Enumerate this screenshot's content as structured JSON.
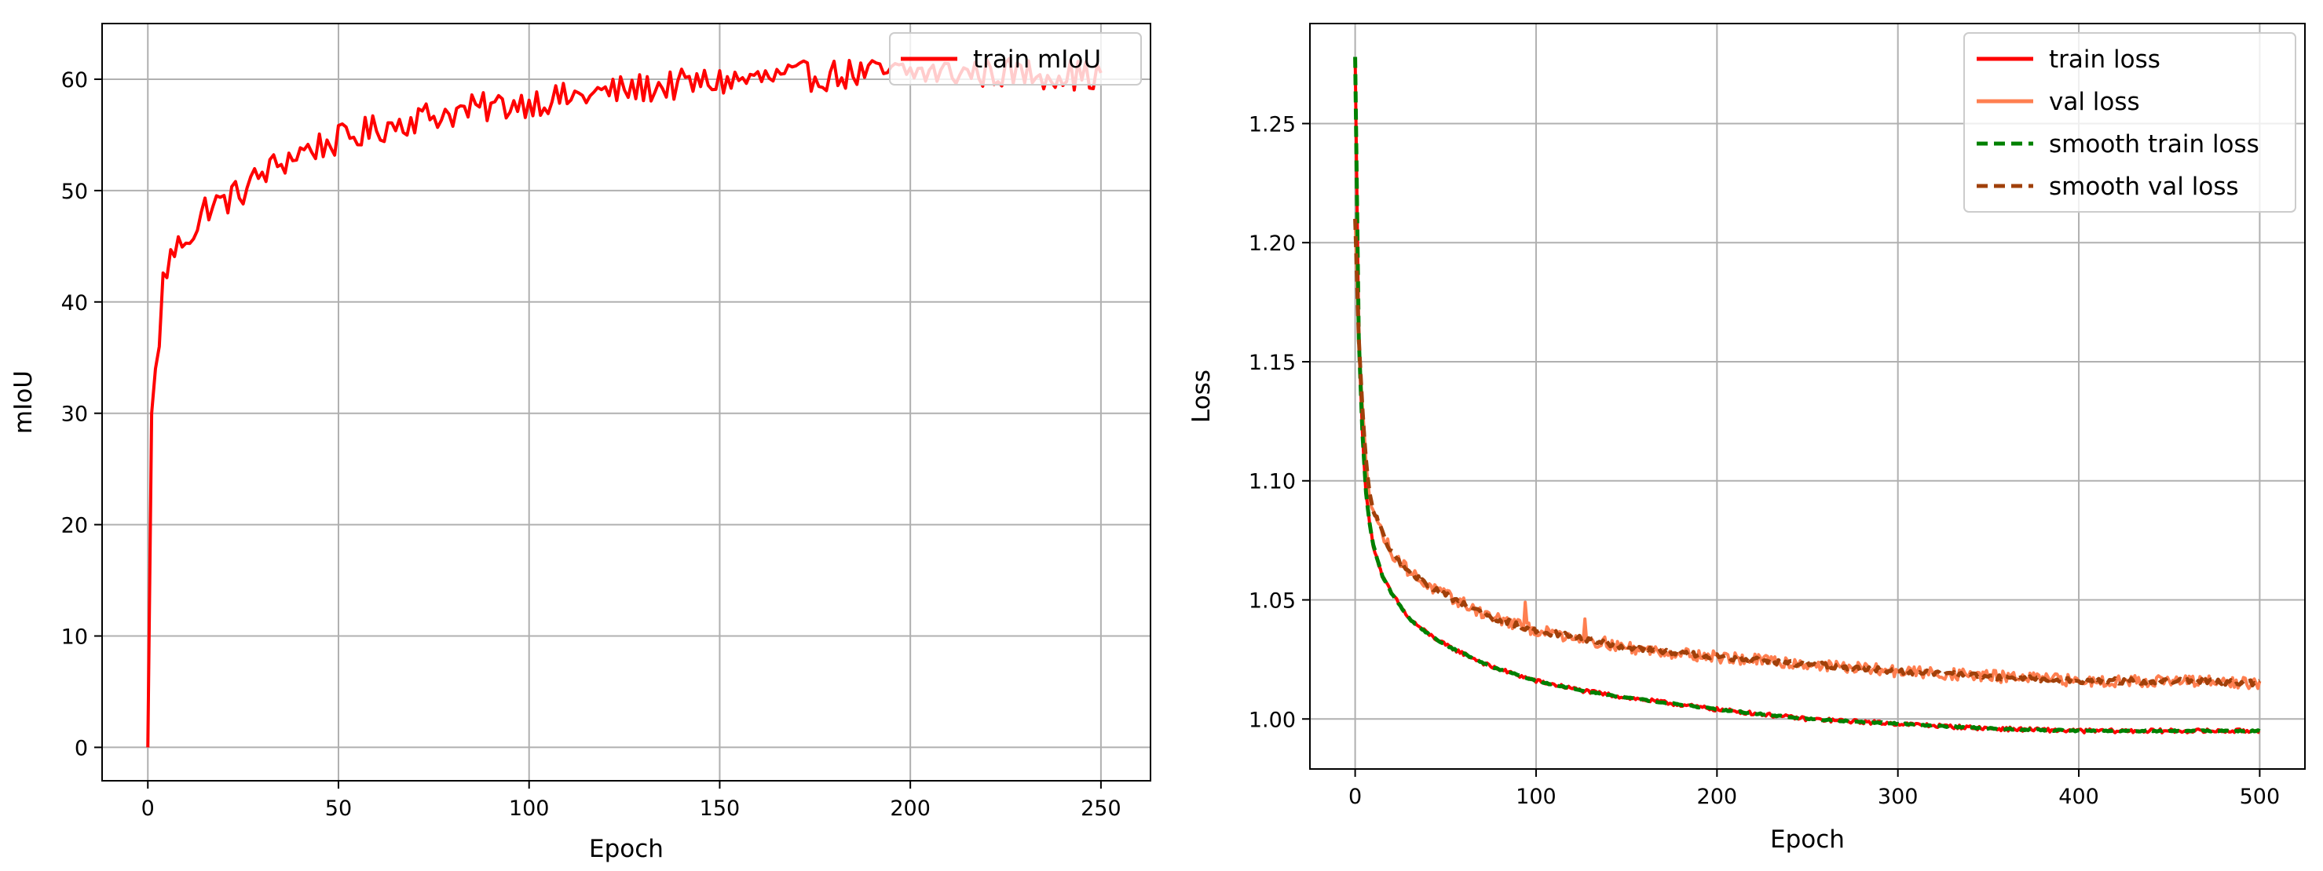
{
  "chart_data": [
    {
      "type": "line",
      "title": "",
      "xlabel": "Epoch",
      "ylabel": "mIoU",
      "xlim": [
        -12,
        263
      ],
      "ylim": [
        -3,
        65
      ],
      "xticks": [
        0,
        50,
        100,
        150,
        200,
        250
      ],
      "yticks": [
        0,
        10,
        20,
        30,
        40,
        50,
        60
      ],
      "grid": true,
      "legend_position": "upper-right",
      "series": [
        {
          "name": "train mIoU",
          "color": "#ff0000",
          "style": "solid",
          "x_start": 0,
          "x_step": 1,
          "anchors": [
            [
              0,
              0
            ],
            [
              1,
              30
            ],
            [
              2,
              34
            ],
            [
              3,
              36
            ],
            [
              4,
              42
            ],
            [
              6,
              44
            ],
            [
              8,
              45
            ],
            [
              10,
              46
            ],
            [
              13,
              46.5
            ],
            [
              15,
              48.5
            ],
            [
              20,
              49
            ],
            [
              25,
              50
            ],
            [
              30,
              51.5
            ],
            [
              35,
              52.5
            ],
            [
              40,
              53.5
            ],
            [
              50,
              54.5
            ],
            [
              60,
              55.5
            ],
            [
              70,
              56.5
            ],
            [
              80,
              57
            ],
            [
              90,
              57.5
            ],
            [
              100,
              58
            ],
            [
              110,
              58.3
            ],
            [
              120,
              58.8
            ],
            [
              130,
              59.2
            ],
            [
              140,
              59.5
            ],
            [
              150,
              59.8
            ],
            [
              160,
              60
            ],
            [
              170,
              60.2
            ],
            [
              180,
              60.4
            ],
            [
              200,
              60.6
            ],
            [
              220,
              60.6
            ],
            [
              240,
              60.5
            ],
            [
              250,
              60.2
            ]
          ],
          "noise_amplitude": 1.4,
          "values": []
        }
      ]
    },
    {
      "type": "line",
      "title": "",
      "xlabel": "Epoch",
      "ylabel": "Loss",
      "xlim": [
        -25,
        525
      ],
      "ylim": [
        0.979,
        1.292
      ],
      "xticks": [
        0,
        100,
        200,
        300,
        400,
        500
      ],
      "yticks": [
        1.0,
        1.05,
        1.1,
        1.15,
        1.2,
        1.25
      ],
      "grid": true,
      "legend_position": "upper-right",
      "series": [
        {
          "name": "train loss",
          "color": "#ff0000",
          "style": "solid",
          "x_start": 0,
          "x_step": 1,
          "anchors": [
            [
              0,
              1.278
            ],
            [
              2,
              1.16
            ],
            [
              4,
              1.12
            ],
            [
              6,
              1.095
            ],
            [
              8,
              1.082
            ],
            [
              10,
              1.073
            ],
            [
              15,
              1.06
            ],
            [
              20,
              1.053
            ],
            [
              30,
              1.042
            ],
            [
              40,
              1.036
            ],
            [
              50,
              1.031
            ],
            [
              75,
              1.022
            ],
            [
              100,
              1.016
            ],
            [
              125,
              1.012
            ],
            [
              150,
              1.009
            ],
            [
              200,
              1.004
            ],
            [
              250,
              1.0
            ],
            [
              300,
              0.998
            ],
            [
              350,
              0.996
            ],
            [
              400,
              0.995
            ],
            [
              450,
              0.995
            ],
            [
              500,
              0.995
            ]
          ],
          "noise_amplitude": 0.0008,
          "values": []
        },
        {
          "name": "val loss",
          "color": "#ff7f50",
          "style": "solid",
          "x_start": 0,
          "x_step": 1,
          "anchors": [
            [
              0,
              1.21
            ],
            [
              2,
              1.16
            ],
            [
              4,
              1.13
            ],
            [
              6,
              1.108
            ],
            [
              8,
              1.095
            ],
            [
              10,
              1.088
            ],
            [
              15,
              1.078
            ],
            [
              20,
              1.07
            ],
            [
              30,
              1.062
            ],
            [
              40,
              1.056
            ],
            [
              50,
              1.052
            ],
            [
              75,
              1.043
            ],
            [
              100,
              1.037
            ],
            [
              125,
              1.034
            ],
            [
              150,
              1.03
            ],
            [
              200,
              1.026
            ],
            [
              250,
              1.023
            ],
            [
              300,
              1.02
            ],
            [
              350,
              1.018
            ],
            [
              400,
              1.016
            ],
            [
              450,
              1.016
            ],
            [
              500,
              1.015
            ]
          ],
          "spikes": [
            [
              94,
              1.049
            ],
            [
              127,
              1.042
            ],
            [
              13,
              1.082
            ]
          ],
          "noise_amplitude": 0.0025,
          "values": []
        },
        {
          "name": "smooth train loss",
          "color": "#008000",
          "style": "dashed",
          "x_start": 0,
          "x_step": 1,
          "anchors": [
            [
              0,
              1.278
            ],
            [
              2,
              1.16
            ],
            [
              4,
              1.12
            ],
            [
              6,
              1.095
            ],
            [
              8,
              1.082
            ],
            [
              10,
              1.073
            ],
            [
              15,
              1.06
            ],
            [
              20,
              1.053
            ],
            [
              30,
              1.042
            ],
            [
              40,
              1.036
            ],
            [
              50,
              1.031
            ],
            [
              75,
              1.022
            ],
            [
              100,
              1.016
            ],
            [
              125,
              1.012
            ],
            [
              150,
              1.009
            ],
            [
              200,
              1.004
            ],
            [
              250,
              1.0
            ],
            [
              300,
              0.998
            ],
            [
              350,
              0.996
            ],
            [
              400,
              0.995
            ],
            [
              450,
              0.995
            ],
            [
              500,
              0.995
            ]
          ],
          "noise_amplitude": 0.0003,
          "values": []
        },
        {
          "name": "smooth val loss",
          "color": "#a0400a",
          "style": "dashed",
          "x_start": 0,
          "x_step": 1,
          "anchors": [
            [
              0,
              1.21
            ],
            [
              2,
              1.16
            ],
            [
              4,
              1.13
            ],
            [
              6,
              1.108
            ],
            [
              8,
              1.095
            ],
            [
              10,
              1.088
            ],
            [
              15,
              1.078
            ],
            [
              20,
              1.07
            ],
            [
              30,
              1.062
            ],
            [
              40,
              1.056
            ],
            [
              50,
              1.052
            ],
            [
              75,
              1.043
            ],
            [
              100,
              1.037
            ],
            [
              125,
              1.034
            ],
            [
              150,
              1.03
            ],
            [
              200,
              1.026
            ],
            [
              250,
              1.023
            ],
            [
              300,
              1.02
            ],
            [
              350,
              1.018
            ],
            [
              400,
              1.016
            ],
            [
              450,
              1.016
            ],
            [
              500,
              1.015
            ]
          ],
          "noise_amplitude": 0.0012,
          "values": []
        }
      ]
    }
  ]
}
